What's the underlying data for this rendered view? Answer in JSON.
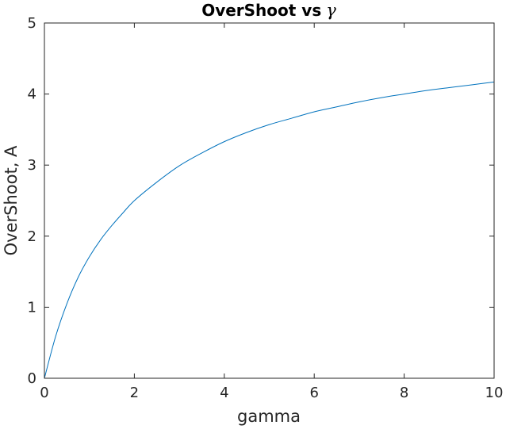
{
  "chart_data": {
    "type": "line",
    "title": "OverShoot vs",
    "title_symbol": "γ",
    "xlabel": "gamma",
    "ylabel": "OverShoot, A",
    "xlim": [
      0,
      10
    ],
    "ylim": [
      0,
      5
    ],
    "xticks": [
      0,
      2,
      4,
      6,
      8,
      10
    ],
    "yticks": [
      0,
      1,
      2,
      3,
      4,
      5
    ],
    "xtick_labels": [
      "0",
      "2",
      "4",
      "6",
      "8",
      "10"
    ],
    "ytick_labels": [
      "0",
      "1",
      "2",
      "3",
      "4",
      "5"
    ],
    "grid": false,
    "box": true,
    "series": [
      {
        "color": "#0072bd",
        "x": [
          0,
          0.25,
          0.5,
          0.75,
          1,
          1.25,
          1.5,
          1.75,
          2,
          2.5,
          3,
          3.5,
          4,
          4.5,
          5,
          5.5,
          6,
          6.5,
          7,
          7.5,
          8,
          8.5,
          9,
          9.5,
          10
        ],
        "y": [
          0,
          0.59,
          1.05,
          1.42,
          1.71,
          1.95,
          2.15,
          2.33,
          2.5,
          2.76,
          2.99,
          3.17,
          3.33,
          3.46,
          3.57,
          3.66,
          3.75,
          3.82,
          3.89,
          3.95,
          4.0,
          4.05,
          4.09,
          4.13,
          4.17
        ]
      }
    ]
  }
}
